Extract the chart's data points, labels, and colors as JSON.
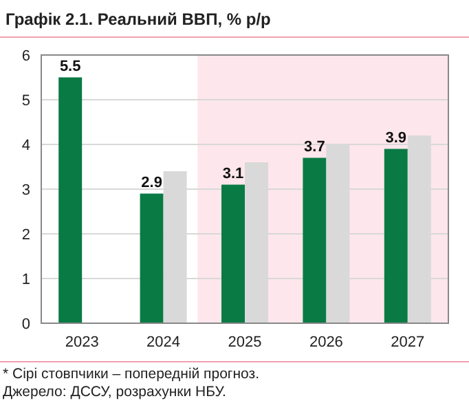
{
  "chart_data": {
    "type": "bar",
    "title": "Графік 2.1. Реальний ВВП, % р/р",
    "categories": [
      "2023",
      "2024",
      "2025",
      "2026",
      "2027"
    ],
    "series": [
      {
        "color": "#0a7a45",
        "values": [
          5.5,
          2.9,
          3.1,
          3.7,
          3.9
        ],
        "value_labels": [
          "5.5",
          "2.9",
          "3.1",
          "3.7",
          "3.9"
        ]
      },
      {
        "color": "#d9d9d9",
        "values": [
          null,
          3.4,
          3.6,
          4.0,
          4.2
        ]
      }
    ],
    "ylim": [
      0,
      6
    ],
    "yticks": [
      0,
      1,
      2,
      3,
      4,
      5,
      6
    ],
    "grid": "y",
    "bands": [
      {
        "axis": "x",
        "from": "2025",
        "to": "2027",
        "color": "#fde6ec"
      }
    ],
    "annotations": [
      "* Сірі стовпчики – попередній прогноз.",
      "Джерело: ДССУ, розрахунки НБУ."
    ]
  }
}
